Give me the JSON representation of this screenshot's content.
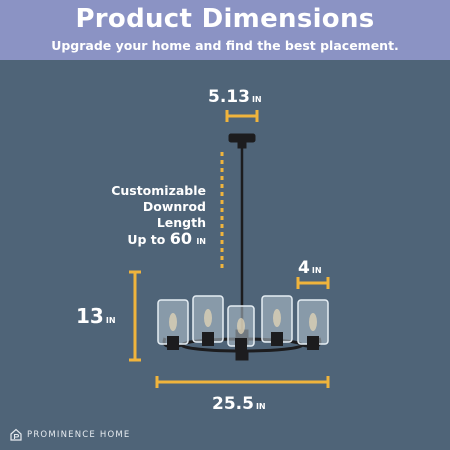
{
  "header": {
    "title": "Product Dimensions",
    "subtitle": "Upgrade your home and find the best placement."
  },
  "dimensions": {
    "canopy_width": {
      "value": "5.13",
      "unit": "IN"
    },
    "downrod_label_line1": "Customizable",
    "downrod_label_line2": "Downrod Length",
    "downrod_prefix": "Up to",
    "downrod_value": "60",
    "downrod_unit": "IN",
    "shade_width": {
      "value": "4",
      "unit": "IN"
    },
    "body_height": {
      "value": "13",
      "unit": "IN"
    },
    "total_width": {
      "value": "25.5",
      "unit": "IN"
    }
  },
  "brand": {
    "name": "PROMINENCE HOME",
    "icon": "house-p-logo-icon"
  },
  "colors": {
    "header_bg": "#8b93c4",
    "background": "#4f6478",
    "dimension_line": "#f0b43c",
    "fixture": "#1c1c1e"
  }
}
